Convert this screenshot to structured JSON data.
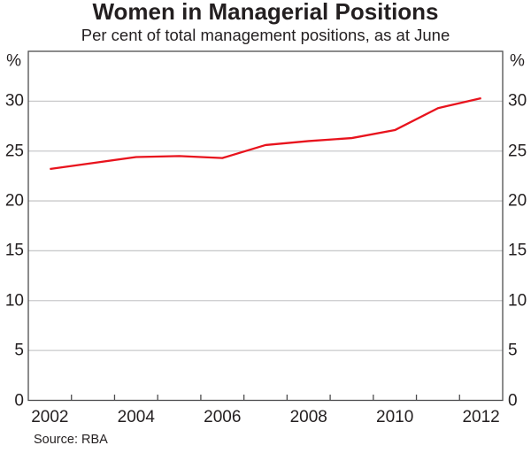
{
  "chart_data": {
    "type": "line",
    "title": "Women in Managerial Positions",
    "subtitle": "Per cent of total management positions, as at June",
    "source": "Source: RBA",
    "unit_label": "%",
    "x": [
      2002,
      2003,
      2004,
      2005,
      2006,
      2007,
      2008,
      2009,
      2010,
      2011,
      2012
    ],
    "series": [
      {
        "name": "Women in managerial positions",
        "color": "#e8131d",
        "values": [
          23.2,
          23.8,
          24.4,
          24.5,
          24.3,
          25.6,
          26.0,
          26.3,
          27.1,
          29.3,
          30.3
        ]
      }
    ],
    "ylim": [
      0,
      35
    ],
    "yticks": [
      0,
      5,
      10,
      15,
      20,
      25,
      30
    ],
    "y_axis_sides": "both",
    "x_axis_boundaries": [
      2002,
      2013
    ],
    "x_tick_labels": [
      "2002",
      "2004",
      "2006",
      "2008",
      "2010",
      "2012"
    ],
    "grid": "horizontal",
    "legend": "none",
    "colors": {
      "line": "#e8131d",
      "grid": "#c9cacb",
      "frame": "#4d4d4f",
      "text": "#231f20"
    }
  }
}
